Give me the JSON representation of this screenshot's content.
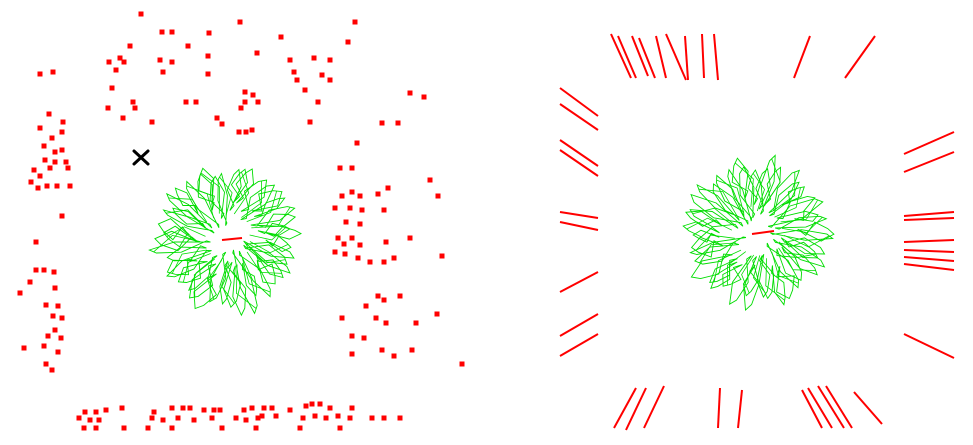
{
  "colors": {
    "points": "#ff0000",
    "segments": "#ff0000",
    "rosette": "#00dd00",
    "center": "#ff0000",
    "marker": "#000000"
  },
  "left_panel": {
    "name": "point-scatter-with-rosette",
    "marker_icon": "x-cross-icon",
    "rosette": {
      "spokes": 44,
      "center_segment": true
    }
  },
  "right_panel": {
    "name": "segment-frame-with-rosette",
    "rosette": {
      "spokes": 44,
      "center_segment": true
    }
  }
}
